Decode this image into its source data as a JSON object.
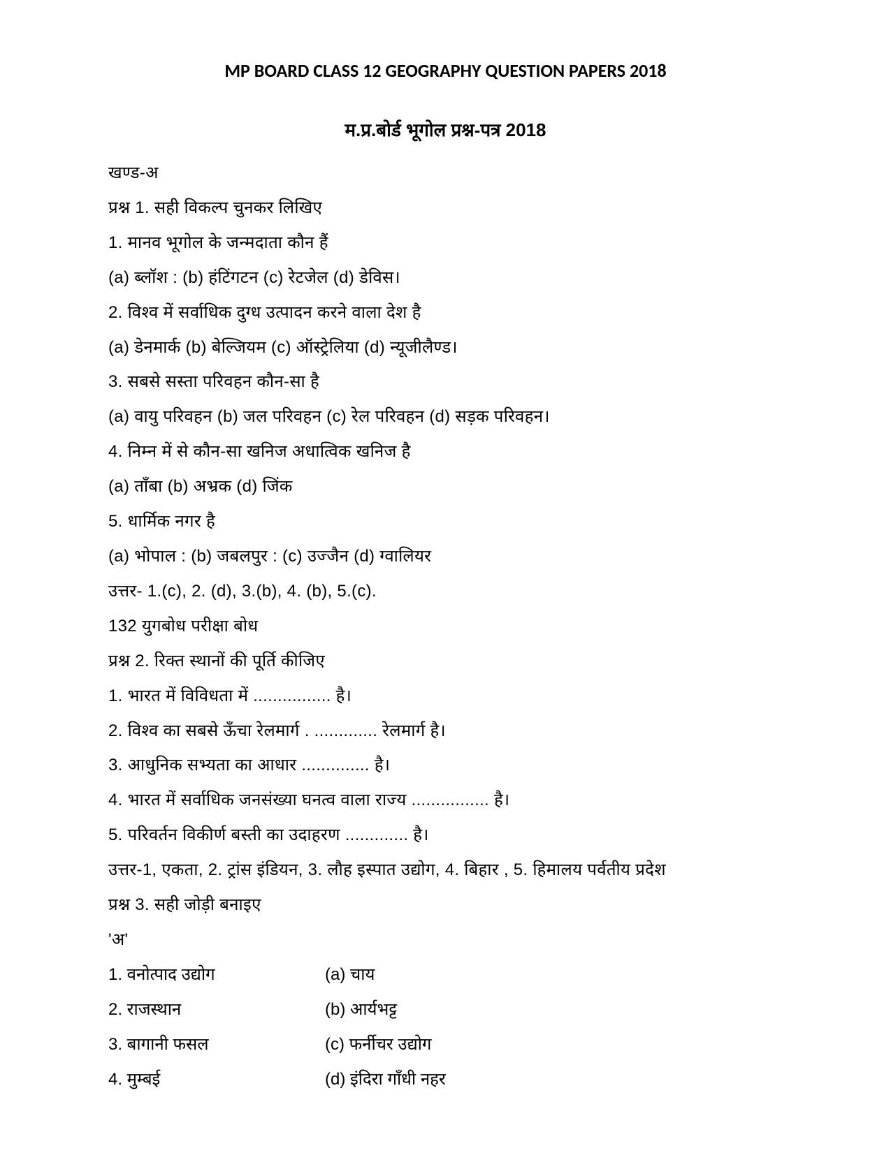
{
  "title_en": "MP BOARD CLASS 12 GEOGRAPHY QUESTION PAPERS 2018",
  "title_hi": "म.प्र.बोर्ड भूगोल प्रश्न-पत्र 2018",
  "section": "खण्ड-अ",
  "q1": {
    "heading": "प्रश्न 1. सही विकल्प चुनकर लिखिए",
    "items": [
      "1. मानव भूगोल के जन्मदाता कौन हैं",
      "(a) ब्लॉश  :  (b) हंटिंगटन  (c) रेटजेल  (d) डेविस।",
      "2. विश्व में सर्वाधिक दुग्ध उत्पादन करने वाला देश है",
      "(a) डेनमार्क  (b) बेल्जियम  (c) ऑस्ट्रेलिया  (d) न्यूजीलैण्ड।",
      "3. सबसे सस्ता परिवहन कौन-सा है",
      "(a) वायु परिवहन  (b) जल परिवहन  (c) रेल परिवहन  (d) सड़क परिवहन।",
      "4. निम्न में से कौन-सा खनिज अधात्विक खनिज है",
      "(a) ताँबा  (b) अभ्रक (d) जिंक",
      "5. धार्मिक नगर है",
      " (a) भोपाल  :  (b) जबलपुर  :  (c) उज्जैन  (d) ग्वालियर"
    ],
    "answer": "उत्तर-  1.(c), 2. (d), 3.(b), 4. (b), 5.(c)."
  },
  "pagenote": "132 युगबोध परीक्षा बोध",
  "q2": {
    "heading": "प्रश्न 2. रिक्त स्थानों की पूर्ति कीजिए",
    "items": [
      "1. भारत में विविधता में ................ है।",
      "2. विश्व का सबसे ऊँचा रेलमार्ग .  ............. रेलमार्ग है।",
      "3. आधुनिक सभ्यता का आधार .............. है।",
      "4. भारत में सर्वाधिक जनसंख्या घनत्व वाला राज्य ................ है।",
      " 5. परिवर्तन विकीर्ण बस्ती का उदाहरण ............. है।"
    ],
    "answer": "उत्तर-1, एकता, 2. ट्रांस इंडियन, 3. लौह इस्पात उद्योग, 4. बिहार  , 5. हिमालय पर्वतीय प्रदेश"
  },
  "q3": {
    "heading": "प्रश्न 3. सही जोड़ी बनाइए",
    "colA_label": " 'अ'",
    "pairs": [
      {
        "left": "1. वनोत्पाद उद्योग",
        "right": "(a) चाय"
      },
      {
        "left": "2. राजस्थान",
        "right": "(b) आर्यभट्ट"
      },
      {
        "left": "3. बागानी फसल",
        "right": "(c) फर्नीचर उद्योग"
      },
      {
        "left": "4. मुम्बई",
        "right": "(d) इंदिरा गाँधी नहर"
      }
    ]
  },
  "style": {
    "background": "#ffffff",
    "text_color": "#000000",
    "title_fontsize": 26,
    "body_fontsize": 24,
    "line_height": 2.08
  }
}
